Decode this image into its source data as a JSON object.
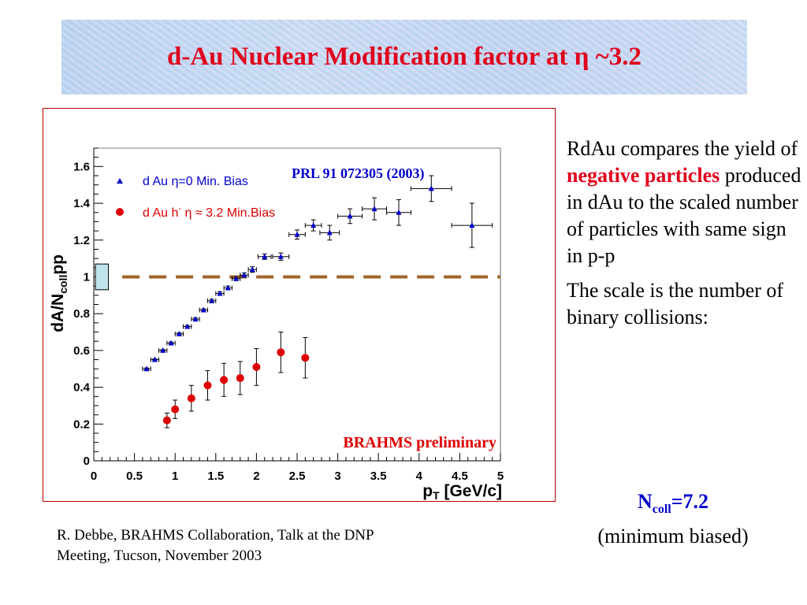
{
  "slide": {
    "title": "d-Au Nuclear Modification factor at η ~3.2",
    "description": {
      "p1": {
        "pre": "RdAu compares the yield of",
        "highlight": "negative particles",
        "post": "produced in dAu to the scaled number of particles with same sign in p-p"
      },
      "p2": "The scale is the number of binary collisions:"
    },
    "ncoll": {
      "main": "N",
      "sub": "coll",
      "value": "=7.2",
      "note": "(minimum biased)"
    },
    "footer": {
      "line1": "R. Debbe, BRAHMS Collaboration, Talk at the DNP",
      "line2": "Meeting, Tucson, November 2003"
    }
  },
  "chart_data": {
    "type": "scatter",
    "xlabel": "p",
    "xlabel_sub": "T",
    "xlabel_unit": " [GeV/c]",
    "ylabel": "dA/N",
    "ylabel_sub": "coll",
    "ylabel_suffix": "pp",
    "xlim": [
      0,
      5
    ],
    "ylim": [
      0,
      1.7
    ],
    "xticks": [
      "0",
      "0.5",
      "1",
      "1.5",
      "2",
      "2.5",
      "3",
      "3.5",
      "4",
      "4.5",
      "5"
    ],
    "xtick_values": [
      0,
      0.5,
      1,
      1.5,
      2,
      2.5,
      3,
      3.5,
      4,
      4.5,
      5
    ],
    "yticks": [
      "0",
      "0.2",
      "0.4",
      "0.6",
      "0.8",
      "1",
      "1.2",
      "1.4",
      "1.6"
    ],
    "ytick_values": [
      0,
      0.2,
      0.4,
      0.6,
      0.8,
      1.0,
      1.2,
      1.4,
      1.6
    ],
    "reference_line": {
      "y": 1.0,
      "style": "dashed",
      "color": "#a0652b"
    },
    "scale_box": {
      "x": [
        0.02,
        0.18
      ],
      "y": [
        0.93,
        1.07
      ],
      "color": "#bfe3ea"
    },
    "annotations": {
      "reference": "PRL 91 072305 (2003)",
      "preliminary": "BRAHMS preliminary"
    },
    "legend": [
      {
        "marker": "triangle",
        "color": "#0000cc",
        "label": "d Au η=0 Min. Bias"
      },
      {
        "marker": "circle",
        "color": "#dd0000",
        "label_main": "d Au h",
        "label_sup": "-",
        "label_rest": " η ≈ 3.2 Min.Bias"
      }
    ],
    "series": [
      {
        "name": "d Au η=0 Min. Bias",
        "marker": "triangle",
        "color": "#0000cc",
        "points": [
          {
            "x": 0.65,
            "y": 0.5,
            "xerr": 0.05,
            "yerr": 0.005
          },
          {
            "x": 0.75,
            "y": 0.55,
            "xerr": 0.05,
            "yerr": 0.005
          },
          {
            "x": 0.85,
            "y": 0.6,
            "xerr": 0.05,
            "yerr": 0.005
          },
          {
            "x": 0.95,
            "y": 0.64,
            "xerr": 0.05,
            "yerr": 0.006
          },
          {
            "x": 1.05,
            "y": 0.69,
            "xerr": 0.05,
            "yerr": 0.006
          },
          {
            "x": 1.15,
            "y": 0.73,
            "xerr": 0.05,
            "yerr": 0.006
          },
          {
            "x": 1.25,
            "y": 0.77,
            "xerr": 0.05,
            "yerr": 0.007
          },
          {
            "x": 1.35,
            "y": 0.82,
            "xerr": 0.05,
            "yerr": 0.007
          },
          {
            "x": 1.45,
            "y": 0.87,
            "xerr": 0.05,
            "yerr": 0.008
          },
          {
            "x": 1.55,
            "y": 0.91,
            "xerr": 0.05,
            "yerr": 0.009
          },
          {
            "x": 1.65,
            "y": 0.94,
            "xerr": 0.05,
            "yerr": 0.01
          },
          {
            "x": 1.75,
            "y": 0.99,
            "xerr": 0.05,
            "yerr": 0.01
          },
          {
            "x": 1.85,
            "y": 1.01,
            "xerr": 0.05,
            "yerr": 0.012
          },
          {
            "x": 1.95,
            "y": 1.04,
            "xerr": 0.05,
            "yerr": 0.015
          },
          {
            "x": 2.1,
            "y": 1.11,
            "xerr": 0.08,
            "yerr": 0.015
          },
          {
            "x": 2.3,
            "y": 1.11,
            "xerr": 0.1,
            "yerr": 0.02
          },
          {
            "x": 2.5,
            "y": 1.23,
            "xerr": 0.1,
            "yerr": 0.025
          },
          {
            "x": 2.7,
            "y": 1.28,
            "xerr": 0.1,
            "yerr": 0.03
          },
          {
            "x": 2.9,
            "y": 1.24,
            "xerr": 0.12,
            "yerr": 0.04
          },
          {
            "x": 3.15,
            "y": 1.33,
            "xerr": 0.15,
            "yerr": 0.04
          },
          {
            "x": 3.45,
            "y": 1.37,
            "xerr": 0.15,
            "yerr": 0.06
          },
          {
            "x": 3.75,
            "y": 1.35,
            "xerr": 0.15,
            "yerr": 0.07
          },
          {
            "x": 4.15,
            "y": 1.48,
            "xerr": 0.25,
            "yerr": 0.07
          },
          {
            "x": 4.65,
            "y": 1.28,
            "xerr": 0.25,
            "yerr": 0.12
          }
        ]
      },
      {
        "name": "d Au h- η ≈ 3.2 Min.Bias",
        "marker": "circle",
        "color": "#dd0000",
        "points": [
          {
            "x": 0.9,
            "y": 0.22,
            "yerr": 0.04
          },
          {
            "x": 1.0,
            "y": 0.28,
            "yerr": 0.05
          },
          {
            "x": 1.2,
            "y": 0.34,
            "yerr": 0.07
          },
          {
            "x": 1.4,
            "y": 0.41,
            "yerr": 0.08
          },
          {
            "x": 1.6,
            "y": 0.44,
            "yerr": 0.09
          },
          {
            "x": 1.8,
            "y": 0.45,
            "yerr": 0.09
          },
          {
            "x": 2.0,
            "y": 0.51,
            "yerr": 0.1
          },
          {
            "x": 2.3,
            "y": 0.59,
            "yerr": 0.11
          },
          {
            "x": 2.6,
            "y": 0.56,
            "yerr": 0.11
          }
        ]
      }
    ]
  }
}
